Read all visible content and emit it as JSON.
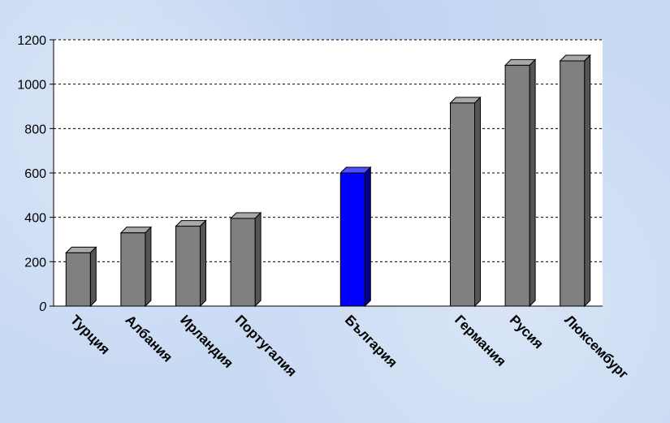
{
  "chart_data": {
    "type": "bar",
    "categories": [
      "Турция",
      "Албания",
      "Ирландия",
      "Португалия",
      "",
      "България",
      "",
      "Германия",
      "Русия",
      "Люксембург"
    ],
    "values": [
      240,
      330,
      360,
      395,
      null,
      600,
      null,
      915,
      1085,
      1105
    ],
    "highlight_index": 5,
    "title": "",
    "xlabel": "",
    "ylabel": "",
    "ylim": [
      0,
      1200
    ],
    "yticks": [
      0,
      200,
      400,
      600,
      800,
      1000,
      1200
    ],
    "ytick_labels": [
      "0",
      "200",
      "400",
      "600",
      "800",
      "1000",
      "1200"
    ],
    "grid": "horizontal-dashed",
    "legend": "none",
    "colors": {
      "bar": "#808080",
      "bar_side": "#555555",
      "bar_top": "#a8a8a8",
      "highlight": "#0000ff",
      "highlight_side": "#00008c",
      "highlight_top": "#4f4fff",
      "plot_background": "#ffffff"
    }
  }
}
